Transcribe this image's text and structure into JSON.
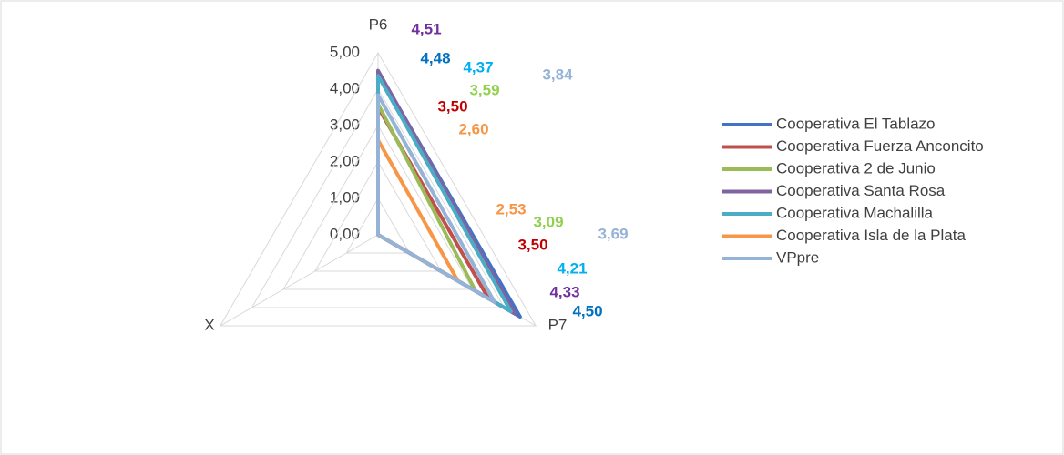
{
  "chart_data": {
    "type": "radar",
    "categories": [
      "P6",
      "P7",
      "X"
    ],
    "rlim": [
      0,
      5
    ],
    "rticks": [
      {
        "value": 0,
        "label": "0,00"
      },
      {
        "value": 1,
        "label": "1,00"
      },
      {
        "value": 2,
        "label": "2,00"
      },
      {
        "value": 3,
        "label": "3,00"
      },
      {
        "value": 4,
        "label": "4,00"
      },
      {
        "value": 5,
        "label": "5,00"
      }
    ],
    "grid": true,
    "legend": "right",
    "series": [
      {
        "name": "Cooperativa El Tablazo",
        "color": "#4472c4",
        "label_color": "#0070c0",
        "values": [
          4.48,
          4.5,
          0
        ],
        "value_labels": [
          "4,48",
          "4,50",
          null
        ]
      },
      {
        "name": "Cooperativa Fuerza Anconcito",
        "color": "#c0504d",
        "label_color": "#c00000",
        "values": [
          3.5,
          3.5,
          0
        ],
        "value_labels": [
          "3,50",
          "3,50",
          null
        ]
      },
      {
        "name": "Cooperativa 2 de Junio",
        "color": "#9bbb59",
        "label_color": "#92d050",
        "values": [
          3.59,
          3.09,
          0
        ],
        "value_labels": [
          "3,59",
          "3,09",
          null
        ]
      },
      {
        "name": "Cooperativa Santa Rosa",
        "color": "#8064a2",
        "label_color": "#7030a0",
        "values": [
          4.51,
          4.33,
          0
        ],
        "value_labels": [
          "4,51",
          "4,33",
          null
        ]
      },
      {
        "name": "Cooperativa Machalilla",
        "color": "#4bacc6",
        "label_color": "#00b0f0",
        "values": [
          4.37,
          4.21,
          0
        ],
        "value_labels": [
          "4,37",
          "4,21",
          null
        ]
      },
      {
        "name": "Cooperativa Isla de la Plata",
        "color": "#f79646",
        "label_color": "#f79646",
        "values": [
          2.6,
          2.53,
          0
        ],
        "value_labels": [
          "2,60",
          "2,53",
          null
        ]
      },
      {
        "name": "VPpre",
        "color": "#95b3d7",
        "label_color": "#95b3d7",
        "values": [
          3.84,
          3.69,
          0
        ],
        "value_labels": [
          "3,84",
          "3,69",
          null
        ]
      }
    ]
  }
}
